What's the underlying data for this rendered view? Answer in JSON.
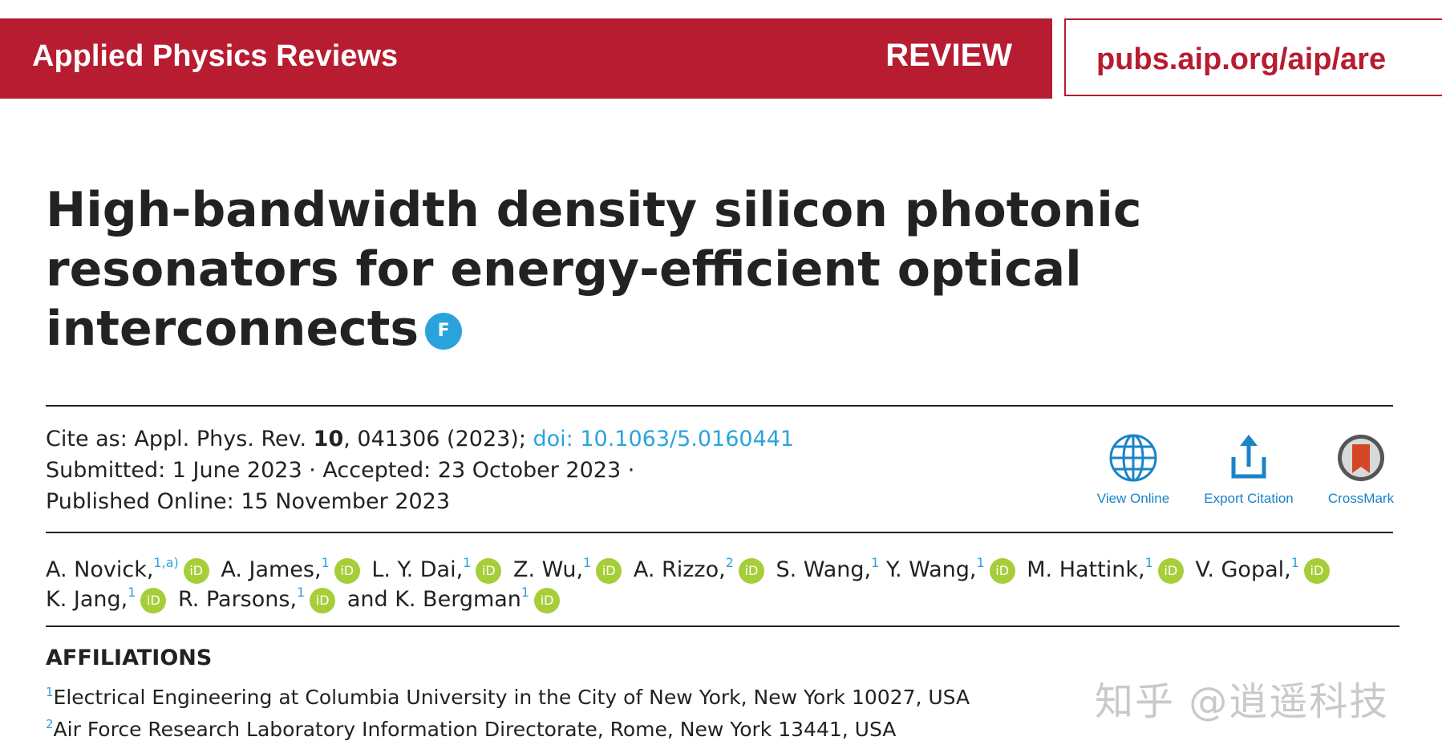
{
  "header": {
    "journal": "Applied Physics Reviews",
    "section": "REVIEW",
    "url": "pubs.aip.org/aip/are",
    "brand_color": "#b71c31"
  },
  "article": {
    "title": "High-bandwidth density silicon photonic resonators for energy-efficient optical interconnects",
    "badge": "F",
    "cite_as_label": "Cite as: Appl. Phys. Rev. ",
    "volume": "10",
    "cite_rest": ", 041306 (2023); ",
    "doi": "doi: 10.1063/5.0160441",
    "submitted": "Submitted: 1 June 2023 · Accepted: 23 October 2023 ·",
    "published": "Published Online: 15 November 2023"
  },
  "actions": [
    {
      "label": "View Online",
      "icon": "globe-icon"
    },
    {
      "label": "Export Citation",
      "icon": "export-icon"
    },
    {
      "label": "CrossMark",
      "icon": "crossmark-icon"
    }
  ],
  "orcid_glyph": "iD",
  "authors": [
    {
      "name": "A. Novick,",
      "sup": "1,a)",
      "orcid": true
    },
    {
      "name": "A. James,",
      "sup": "1",
      "orcid": true
    },
    {
      "name": "L. Y. Dai,",
      "sup": "1",
      "orcid": true
    },
    {
      "name": "Z. Wu,",
      "sup": "1",
      "orcid": true
    },
    {
      "name": "A. Rizzo,",
      "sup": "2",
      "orcid": true
    },
    {
      "name": "S. Wang,",
      "sup": "1",
      "orcid": false
    },
    {
      "name": "Y. Wang,",
      "sup": "1",
      "orcid": true
    },
    {
      "name": "M. Hattink,",
      "sup": "1",
      "orcid": true
    },
    {
      "name": "V. Gopal,",
      "sup": "1",
      "orcid": true
    },
    {
      "name": "K. Jang,",
      "sup": "1",
      "orcid": true
    },
    {
      "name": "R. Parsons,",
      "sup": "1",
      "orcid": true
    },
    {
      "name": "and K. Bergman",
      "sup": "1",
      "orcid": true
    }
  ],
  "affiliations": {
    "heading": "AFFILIATIONS",
    "items": [
      {
        "sup": "1",
        "text": "Electrical Engineering at Columbia University in the City of New York, New York 10027, USA"
      },
      {
        "sup": "2",
        "text": "Air Force Research Laboratory Information Directorate, Rome, New York 13441, USA"
      }
    ]
  },
  "watermark": "知乎 @逍遥科技"
}
